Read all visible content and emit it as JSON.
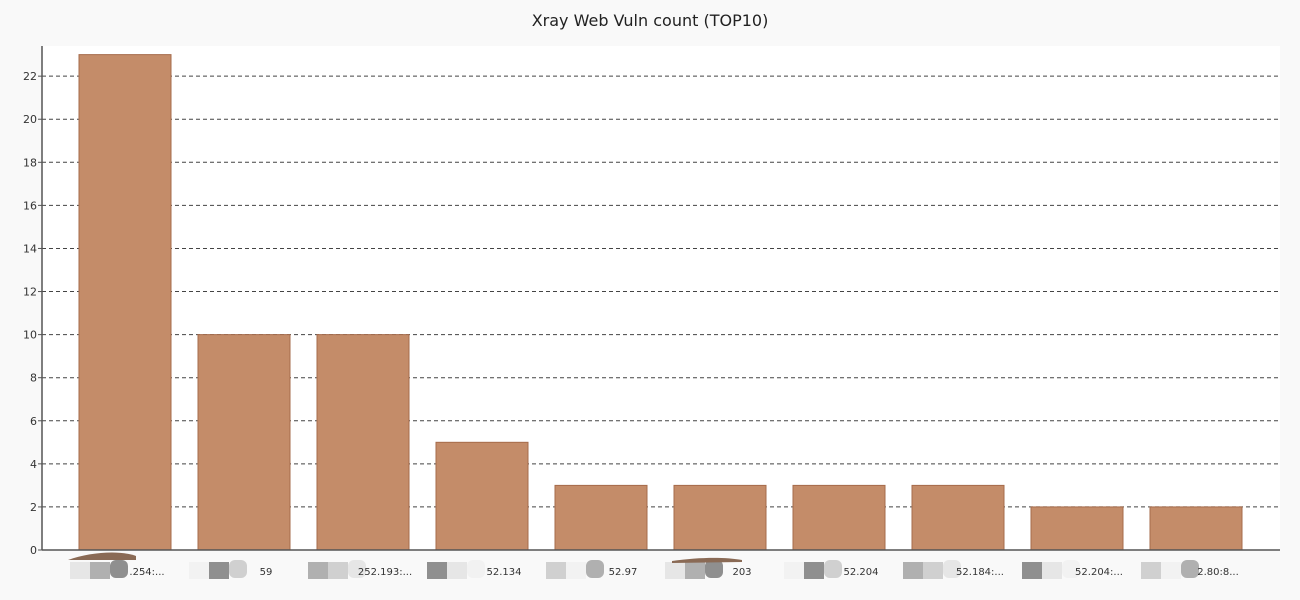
{
  "chart_data": {
    "type": "bar",
    "title": "Xray Web Vuln count (TOP10)",
    "xlabel": "",
    "ylabel": "",
    "categories": [
      ".254:...",
      "59",
      "252.193:...",
      "52.134",
      "52.97",
      "203",
      "52.204",
      "52.184:...",
      "52.204:...",
      "2.80:8..."
    ],
    "values": [
      23,
      10,
      10,
      5,
      3,
      3,
      3,
      3,
      2,
      2
    ],
    "ylim": [
      0,
      23.4
    ],
    "yticks": [
      0,
      2,
      4,
      6,
      8,
      10,
      12,
      14,
      16,
      18,
      20,
      22
    ],
    "grid": "y-dashed",
    "legend": "none",
    "colors": {
      "bar": "#c48c69",
      "bar_edge": "#a66b4b",
      "plot_bg": "#ffffff",
      "page_bg": "#f9f9f9",
      "grid": "#444444",
      "axis": "#555555"
    }
  }
}
